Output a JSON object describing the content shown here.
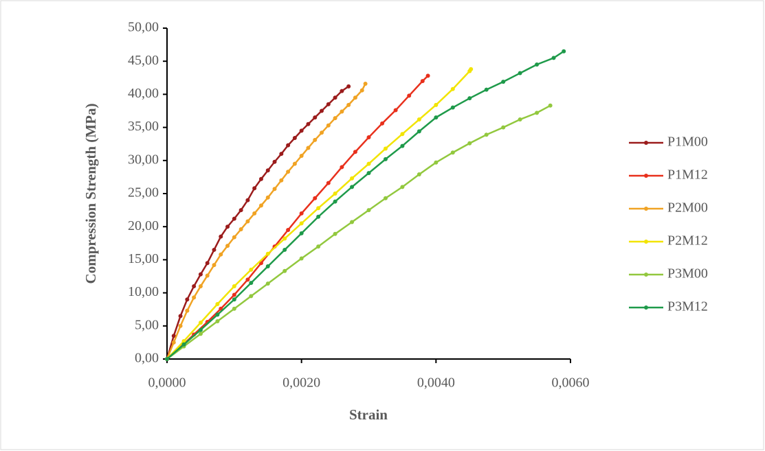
{
  "chart_data": {
    "type": "line",
    "x_label": "Strain",
    "y_label": "Compression Strength (MPa)",
    "xlim": [
      0,
      0.006
    ],
    "ylim": [
      0,
      50
    ],
    "xticks": [
      {
        "value": 0,
        "label": "0,0000"
      },
      {
        "value": 0.002,
        "label": "0,0020"
      },
      {
        "value": 0.004,
        "label": "0,0040"
      },
      {
        "value": 0.006,
        "label": "0,0060"
      }
    ],
    "yticks": [
      {
        "value": 0,
        "label": "0,00"
      },
      {
        "value": 5,
        "label": "5,00"
      },
      {
        "value": 10,
        "label": "10,00"
      },
      {
        "value": 15,
        "label": "15,00"
      },
      {
        "value": 20,
        "label": "20,00"
      },
      {
        "value": 25,
        "label": "25,00"
      },
      {
        "value": 30,
        "label": "30,00"
      },
      {
        "value": 35,
        "label": "35,00"
      },
      {
        "value": 40,
        "label": "40,00"
      },
      {
        "value": 45,
        "label": "45,00"
      },
      {
        "value": 50,
        "label": "50,00"
      }
    ],
    "grid": false,
    "legend": "right",
    "series": [
      {
        "name": "P1M00",
        "color": "#9b1c1c",
        "x": [
          0,
          0.0001,
          0.0002,
          0.0003,
          0.0004,
          0.0005,
          0.0006,
          0.0007,
          0.0008,
          0.0009,
          0.001,
          0.0011,
          0.0012,
          0.0013,
          0.0014,
          0.0015,
          0.0016,
          0.0017,
          0.0018,
          0.0019,
          0.002,
          0.0021,
          0.0022,
          0.0023,
          0.0024,
          0.0025,
          0.0026,
          0.0027
        ],
        "values": [
          0,
          3.5,
          6.5,
          9,
          11,
          12.8,
          14.5,
          16.5,
          18.5,
          20,
          21.2,
          22.5,
          24,
          25.8,
          27.2,
          28.5,
          29.8,
          31,
          32.3,
          33.4,
          34.5,
          35.5,
          36.5,
          37.5,
          38.5,
          39.5,
          40.5,
          41.2
        ]
      },
      {
        "name": "P1M12",
        "color": "#e8301c",
        "x": [
          0,
          0.0002,
          0.0004,
          0.0006,
          0.0008,
          0.001,
          0.0012,
          0.0014,
          0.0016,
          0.0018,
          0.002,
          0.0022,
          0.0024,
          0.0026,
          0.0028,
          0.003,
          0.0032,
          0.0034,
          0.0036,
          0.0038,
          0.00388
        ],
        "values": [
          0,
          1.8,
          3.7,
          5.6,
          7.6,
          9.7,
          12,
          14.5,
          17,
          19.5,
          22,
          24.3,
          26.6,
          29,
          31.3,
          33.5,
          35.6,
          37.6,
          39.8,
          42,
          42.8
        ]
      },
      {
        "name": "P2M00",
        "color": "#f0a324",
        "x": [
          0,
          0.0001,
          0.0002,
          0.0003,
          0.0004,
          0.0005,
          0.0006,
          0.0007,
          0.0008,
          0.0009,
          0.001,
          0.0011,
          0.0012,
          0.0013,
          0.0014,
          0.0015,
          0.0016,
          0.0017,
          0.0018,
          0.0019,
          0.002,
          0.0021,
          0.0022,
          0.0023,
          0.0024,
          0.0025,
          0.0026,
          0.0027,
          0.0028,
          0.0029,
          0.00295
        ],
        "values": [
          0,
          2.5,
          5,
          7.3,
          9.3,
          11,
          12.6,
          14.2,
          15.8,
          17.1,
          18.4,
          19.6,
          20.8,
          22,
          23.2,
          24.4,
          25.7,
          27,
          28.3,
          29.5,
          30.7,
          31.9,
          33.1,
          34.2,
          35.3,
          36.4,
          37.4,
          38.4,
          39.5,
          40.6,
          41.6
        ]
      },
      {
        "name": "P2M12",
        "color": "#f2e400",
        "x": [
          0,
          0.00025,
          0.0005,
          0.00075,
          0.001,
          0.00125,
          0.0015,
          0.00175,
          0.002,
          0.00225,
          0.0025,
          0.00275,
          0.003,
          0.00325,
          0.0035,
          0.00375,
          0.004,
          0.00425,
          0.0045,
          0.00452
        ],
        "values": [
          0,
          2.7,
          5.5,
          8.3,
          11,
          13.5,
          15.9,
          18.2,
          20.5,
          22.8,
          25,
          27.3,
          29.5,
          31.8,
          34,
          36.2,
          38.4,
          40.8,
          43.5,
          43.8
        ]
      },
      {
        "name": "P3M00",
        "color": "#92c83e",
        "x": [
          0,
          0.00025,
          0.0005,
          0.00075,
          0.001,
          0.00125,
          0.0015,
          0.00175,
          0.002,
          0.00225,
          0.0025,
          0.00275,
          0.003,
          0.00325,
          0.0035,
          0.00375,
          0.004,
          0.00425,
          0.0045,
          0.00475,
          0.005,
          0.00525,
          0.0055,
          0.0057
        ],
        "values": [
          0,
          1.9,
          3.8,
          5.7,
          7.6,
          9.5,
          11.4,
          13.3,
          15.2,
          17,
          18.9,
          20.7,
          22.5,
          24.3,
          26,
          27.9,
          29.7,
          31.2,
          32.6,
          33.9,
          35,
          36.2,
          37.2,
          38.3
        ]
      },
      {
        "name": "P3M12",
        "color": "#1e9a4a",
        "x": [
          0,
          0.00025,
          0.0005,
          0.00075,
          0.001,
          0.00125,
          0.0015,
          0.00175,
          0.002,
          0.00225,
          0.0025,
          0.00275,
          0.003,
          0.00325,
          0.0035,
          0.00375,
          0.004,
          0.00425,
          0.0045,
          0.00475,
          0.005,
          0.00525,
          0.0055,
          0.00575,
          0.0059
        ],
        "values": [
          0,
          2.2,
          4.4,
          6.7,
          9,
          11.5,
          14,
          16.5,
          19,
          21.5,
          23.8,
          26,
          28.1,
          30.2,
          32.2,
          34.4,
          36.5,
          38,
          39.4,
          40.7,
          41.9,
          43.2,
          44.5,
          45.5,
          46.5
        ]
      }
    ]
  }
}
